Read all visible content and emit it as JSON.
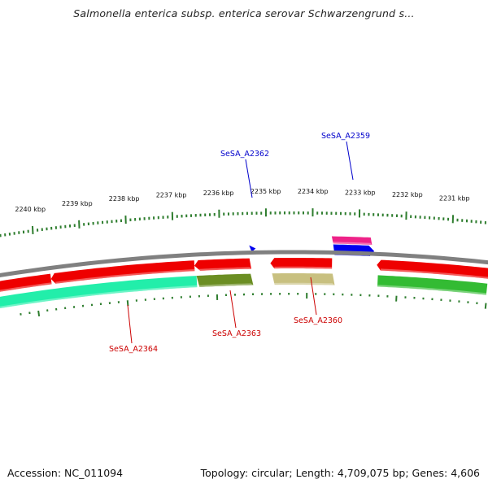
{
  "title": "Salmonella enterica subsp. enterica serovar Schwarzengrund s...",
  "footer": {
    "accession": "Accession: NC_011094",
    "topology": "Topology: circular; Length: 4,709,075 bp; Genes: 4,606"
  },
  "colors": {
    "backbone": "#808080",
    "tick": "#2e7d2e",
    "label_blue": "#0000cc",
    "label_red": "#cc0000",
    "leader_blue": "#0000cc",
    "leader_red": "#cc0000",
    "cds_red": "#ee0000",
    "cds_green": "#33bb33",
    "cds_aqua": "#22eeaa",
    "cds_olive": "#6b8e23",
    "cds_khaki": "#c8c080",
    "cds_magenta": "#ee2288",
    "cds_blue": "#0000ee"
  },
  "ticks": [
    {
      "label": "2240 kbp"
    },
    {
      "label": "2239 kbp"
    },
    {
      "label": "2238 kbp"
    },
    {
      "label": "2237 kbp"
    },
    {
      "label": "2236 kbp"
    },
    {
      "label": "2235 kbp"
    },
    {
      "label": "2234 kbp"
    },
    {
      "label": "2233 kbp"
    },
    {
      "label": "2232 kbp"
    },
    {
      "label": "2231 kbp"
    }
  ],
  "gene_labels": [
    {
      "id": "SeSA_A2359",
      "color": "blue"
    },
    {
      "id": "SeSA_A2362",
      "color": "blue"
    },
    {
      "id": "SeSA_A2364",
      "color": "red"
    },
    {
      "id": "SeSA_A2363",
      "color": "red"
    },
    {
      "id": "SeSA_A2360",
      "color": "red"
    }
  ]
}
